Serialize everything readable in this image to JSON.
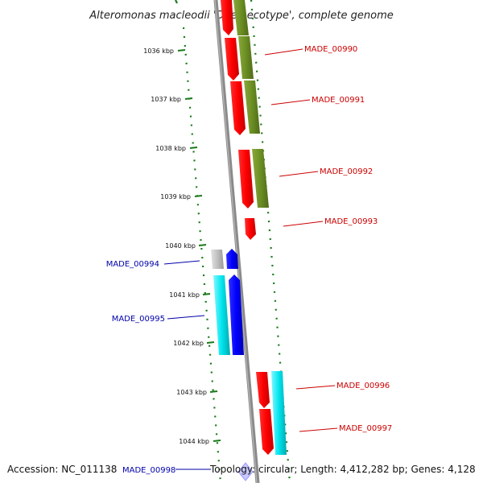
{
  "title": "Alteromonas macleodii 'Deep ecotype', complete genome",
  "ticks": [
    "1036 kbp",
    "1037 kbp",
    "1038 kbp",
    "1039 kbp",
    "1040 kbp",
    "1041 kbp",
    "1042 kbp",
    "1043 kbp",
    "1044 kbp"
  ],
  "gene_labels": {
    "made_00990": "MADE_00990",
    "made_00991": "MADE_00991",
    "made_00992": "MADE_00992",
    "made_00993": "MADE_00993",
    "made_00994": "MADE_00994",
    "made_00995": "MADE_00995",
    "made_00996": "MADE_00996",
    "made_00997": "MADE_00997",
    "made_00998": "MADE_00998"
  },
  "footer": {
    "accession": "Accession: NC_011138",
    "topology": "Topology: circular; Length: 4,412,282 bp; Genes: 4,128"
  },
  "colors": {
    "forward_cds": "#ff0000",
    "reverse_cds": "#0000ff",
    "olive_feature": "#6b8e23",
    "cyan_feature": "#00e5ee",
    "gray_feature": "#c0c0c0",
    "backbone": "#888888",
    "dotted_ring": "#1a7a1a",
    "label_forward": "#cc0000",
    "label_reverse": "#0000aa"
  }
}
